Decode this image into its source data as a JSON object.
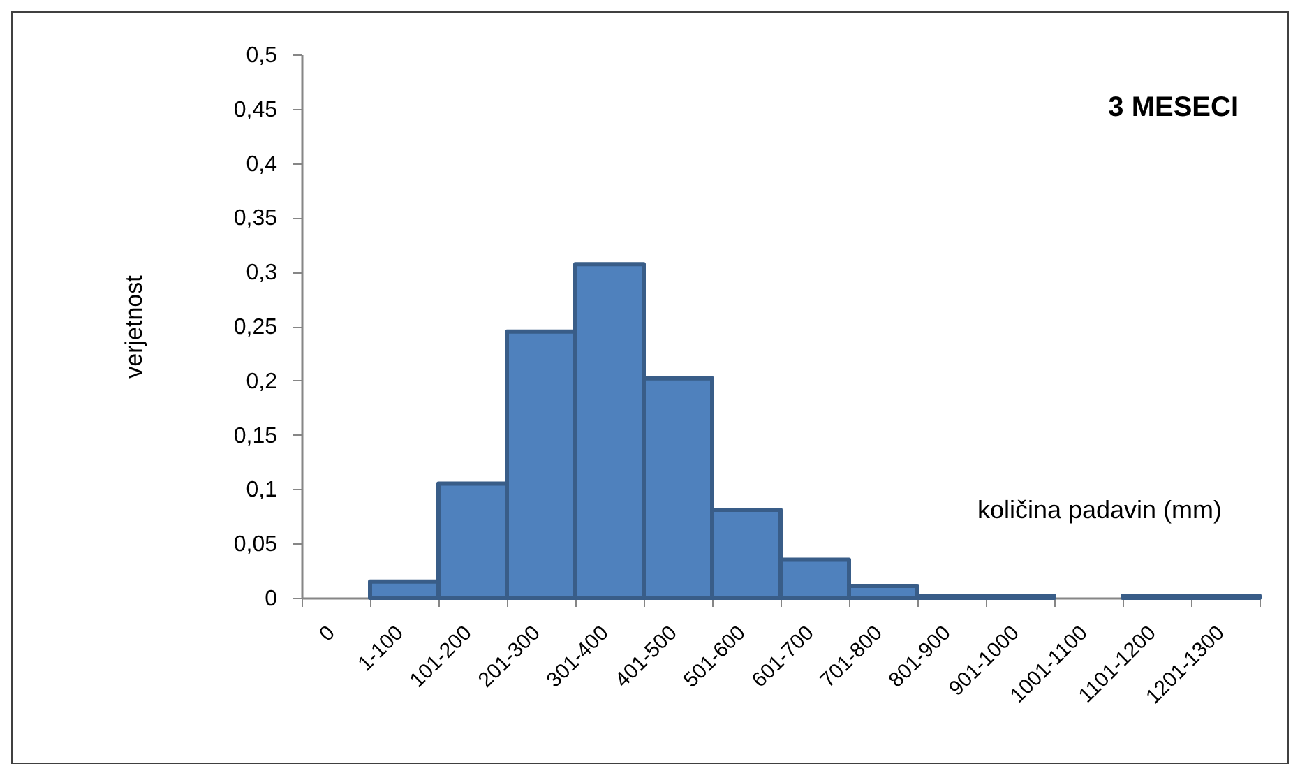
{
  "chart_data": {
    "type": "bar",
    "title": "3 MESECI",
    "xlabel": "količina padavin (mm)",
    "ylabel": "verjetnost",
    "categories": [
      "0",
      "1-100",
      "101-200",
      "201-300",
      "301-400",
      "401-500",
      "501-600",
      "601-700",
      "701-800",
      "801-900",
      "901-1000",
      "1001-1100",
      "1101-1200",
      "1201-1300"
    ],
    "values": [
      null,
      0.015,
      0.105,
      0.245,
      0.307,
      0.202,
      0.081,
      0.035,
      0.011,
      0.002,
      0.002,
      null,
      0.002,
      0.002
    ],
    "color": "#4f81bd",
    "ylim": [
      0,
      0.5
    ],
    "yticks": [
      0,
      {
        "value": 0.05,
        "label": "0,05"
      },
      {
        "value": 0.1,
        "label": "0,1"
      },
      {
        "value": 0.15,
        "label": "0,15"
      },
      {
        "value": 0.2,
        "label": "0,2"
      },
      {
        "value": 0.25,
        "label": "0,25"
      },
      {
        "value": 0.3,
        "label": "0,3"
      },
      {
        "value": 0.35,
        "label": "0,35"
      },
      {
        "value": 0.4,
        "label": "0,4"
      },
      {
        "value": 0.45,
        "label": "0,45"
      },
      {
        "value": 0.5,
        "label": "0,5"
      }
    ]
  }
}
